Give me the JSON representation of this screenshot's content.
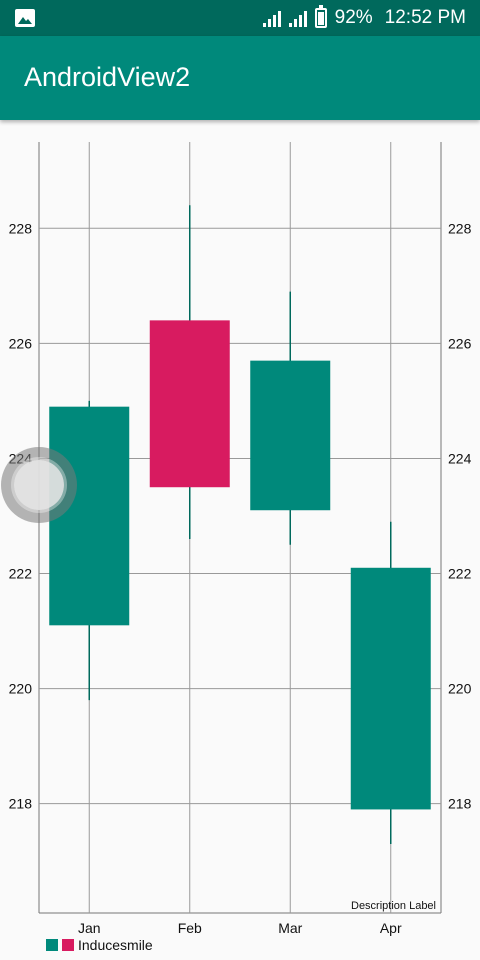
{
  "status_bar": {
    "battery": "92%",
    "time": "12:52 PM",
    "battery_level": 0.92
  },
  "app_bar": {
    "title": "AndroidView2"
  },
  "chart_data": {
    "type": "candlestick",
    "categories": [
      "Jan",
      "Feb",
      "Mar",
      "Apr"
    ],
    "candles": [
      {
        "x": "Jan",
        "open": 224.9,
        "close": 221.1,
        "high": 225.0,
        "low": 219.8,
        "color": "#00897b"
      },
      {
        "x": "Feb",
        "open": 223.5,
        "close": 226.4,
        "high": 228.4,
        "low": 222.6,
        "color": "#d81b60"
      },
      {
        "x": "Mar",
        "open": 225.7,
        "close": 223.1,
        "high": 226.9,
        "low": 222.5,
        "color": "#00897b"
      },
      {
        "x": "Apr",
        "open": 222.1,
        "close": 217.9,
        "high": 222.9,
        "low": 217.3,
        "color": "#00897b"
      }
    ],
    "y_ticks": [
      218,
      220,
      222,
      224,
      226,
      228
    ],
    "ylim": [
      216.1,
      229.5
    ],
    "grid": true,
    "right_axis": true,
    "description": "Description Label",
    "legend": {
      "label": "Inducesmile",
      "colors": [
        "#00897b",
        "#d81b60"
      ],
      "position": "bottom-left"
    }
  }
}
